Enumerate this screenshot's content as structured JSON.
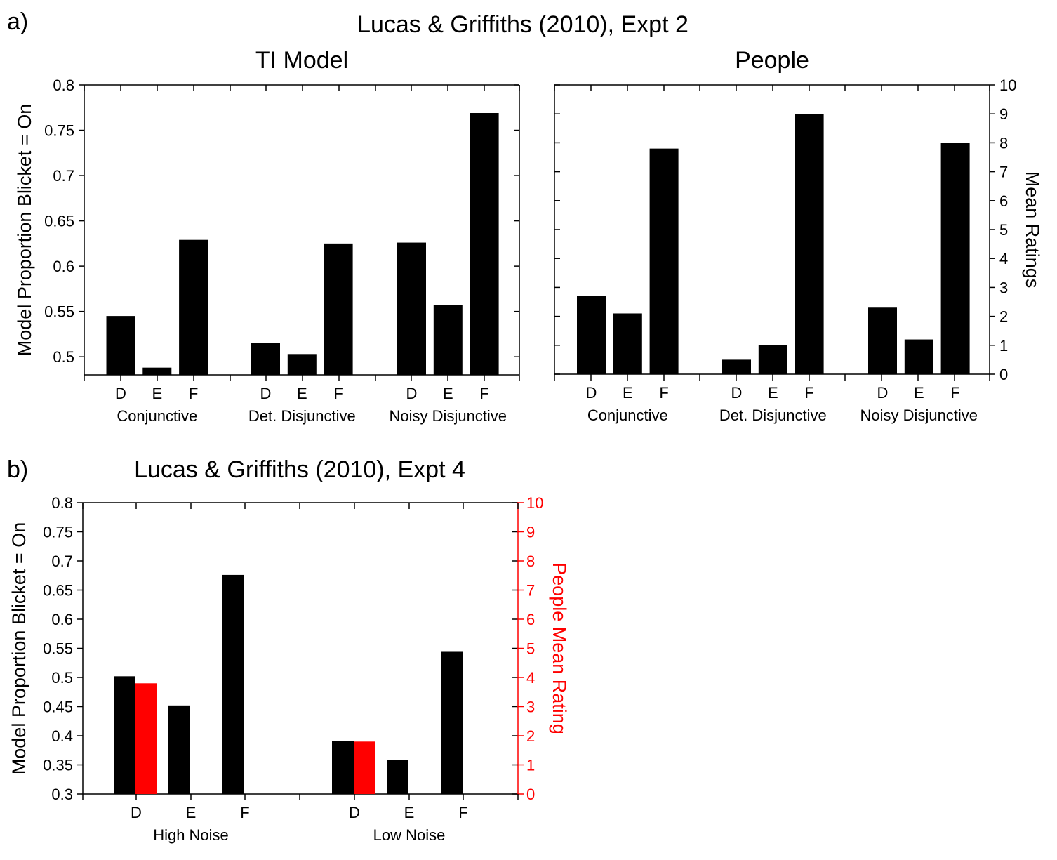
{
  "panel_a": {
    "label": "a)",
    "title": "Lucas & Griffiths (2010), Expt 2"
  },
  "panel_b": {
    "label": "b)",
    "title": "Lucas & Griffiths (2010), Expt 4"
  },
  "chart_data": [
    {
      "type": "bar",
      "title": "TI Model",
      "ylabel": "Model Proportion Blicket = On",
      "ylim": [
        0.48,
        0.8
      ],
      "yticks": [
        "0.5",
        "0.55",
        "0.6",
        "0.65",
        "0.7",
        "0.75",
        "0.8"
      ],
      "groups": [
        "Conjunctive",
        "Det. Disjunctive",
        "Noisy Disjunctive"
      ],
      "categories": [
        "D",
        "E",
        "F"
      ],
      "values": [
        [
          0.545,
          0.488,
          0.629
        ],
        [
          0.515,
          0.503,
          0.625
        ],
        [
          0.626,
          0.557,
          0.769
        ]
      ],
      "bar_color": "#000000"
    },
    {
      "type": "bar",
      "title": "People",
      "ylabel": "Mean Ratings",
      "ylim": [
        0,
        10
      ],
      "yticks": [
        "0",
        "1",
        "2",
        "3",
        "4",
        "5",
        "6",
        "7",
        "8",
        "9",
        "10"
      ],
      "groups": [
        "Conjunctive",
        "Det. Disjunctive",
        "Noisy Disjunctive"
      ],
      "categories": [
        "D",
        "E",
        "F"
      ],
      "values": [
        [
          2.7,
          2.1,
          7.8
        ],
        [
          0.5,
          1.0,
          9.0
        ],
        [
          2.3,
          1.2,
          8.0
        ]
      ],
      "bar_color": "#000000"
    },
    {
      "type": "bar",
      "ylabel": "Model Proportion Blicket = On",
      "ylabel_right": "People Mean Rating",
      "ylim": [
        0.3,
        0.8
      ],
      "ylim_right": [
        0,
        10
      ],
      "yticks": [
        "0.3",
        "0.35",
        "0.4",
        "0.45",
        "0.5",
        "0.55",
        "0.6",
        "0.65",
        "0.7",
        "0.75",
        "0.8"
      ],
      "yticks_right": [
        "0",
        "1",
        "2",
        "3",
        "4",
        "5",
        "6",
        "7",
        "8",
        "9",
        "10"
      ],
      "groups": [
        "High Noise",
        "Low Noise"
      ],
      "categories": [
        "D",
        "E",
        "F"
      ],
      "series": [
        {
          "axis": "left",
          "color": "#000000",
          "values": [
            [
              0.502,
              0.452,
              0.676
            ],
            [
              0.391,
              0.358,
              0.544
            ]
          ]
        },
        {
          "axis": "right",
          "color": "#ff0000",
          "values": [
            [
              3.8,
              null,
              null
            ],
            [
              1.8,
              null,
              null
            ]
          ]
        }
      ]
    }
  ]
}
